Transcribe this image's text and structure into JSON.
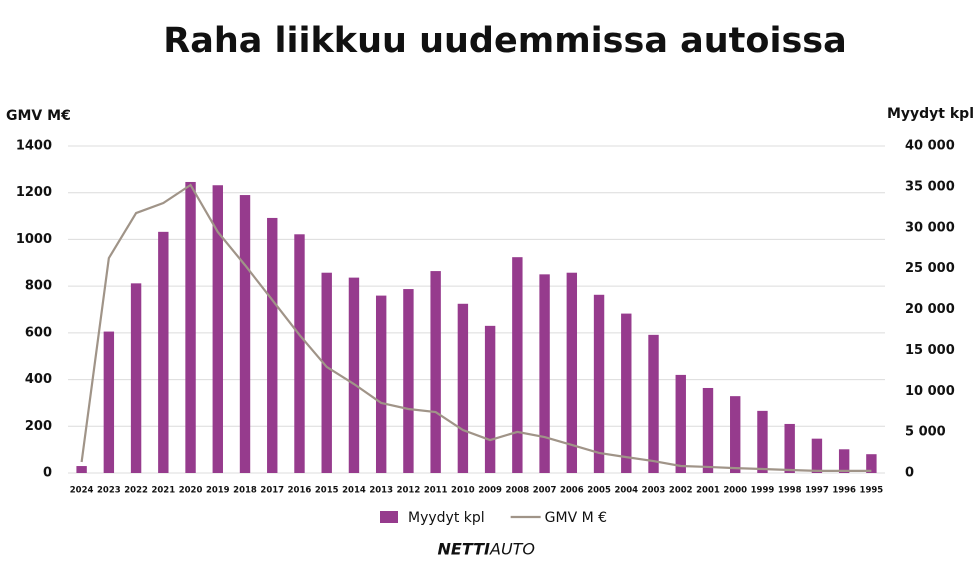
{
  "chart_data": {
    "type": "bar-line",
    "title": "Raha liikkuu uudemmissa autoissa",
    "y_label": "GMV M€",
    "y2_label": "Myydyt kpl",
    "categories": [
      "2024",
      "2023",
      "2022",
      "2021",
      "2020",
      "2019",
      "2018",
      "2017",
      "2016",
      "2015",
      "2014",
      "2013",
      "2012",
      "2011",
      "2010",
      "2009",
      "2008",
      "2007",
      "2006",
      "2005",
      "2004",
      "2003",
      "2002",
      "2001",
      "2000",
      "1999",
      "1998",
      "1997",
      "1996",
      "1995"
    ],
    "series": [
      {
        "name": "Myydyt kpl",
        "type": "bar",
        "axis": "y2",
        "color": "#963b8d",
        "values": [
          850,
          17300,
          23200,
          29500,
          35600,
          35200,
          34000,
          31200,
          29200,
          24500,
          23900,
          21700,
          22500,
          24700,
          20700,
          18000,
          26400,
          24300,
          24500,
          21800,
          19500,
          16900,
          12000,
          10400,
          9400,
          7600,
          6000,
          4200,
          2900,
          2300
        ]
      },
      {
        "name": "GMV M €",
        "type": "line",
        "axis": "y",
        "color": "#a09488",
        "values": [
          47,
          920,
          1113,
          1156,
          1233,
          1032,
          890,
          741,
          591,
          454,
          381,
          300,
          274,
          261,
          184,
          141,
          176,
          154,
          120,
          86,
          68,
          51,
          30,
          26,
          21,
          17,
          13,
          9,
          9,
          9
        ]
      }
    ],
    "ylim": [
      0,
      1400
    ],
    "yticks": [
      0,
      200,
      400,
      600,
      800,
      1000,
      1200,
      1400
    ],
    "y2lim": [
      0,
      40000
    ],
    "y2ticks": [
      0,
      {
        "value": 5000,
        "label": "5 000"
      },
      {
        "value": 10000,
        "label": "10 000"
      },
      {
        "value": 15000,
        "label": "15 000"
      },
      {
        "value": 20000,
        "label": "20 000"
      },
      {
        "value": 25000,
        "label": "25 000"
      },
      {
        "value": 30000,
        "label": "30 000"
      },
      {
        "value": 35000,
        "label": "35 000"
      },
      {
        "value": 40000,
        "label": "40 000"
      }
    ],
    "grid": true,
    "legend": "bottom",
    "logo": {
      "bold": "NETTI",
      "light": "AUTO"
    }
  }
}
